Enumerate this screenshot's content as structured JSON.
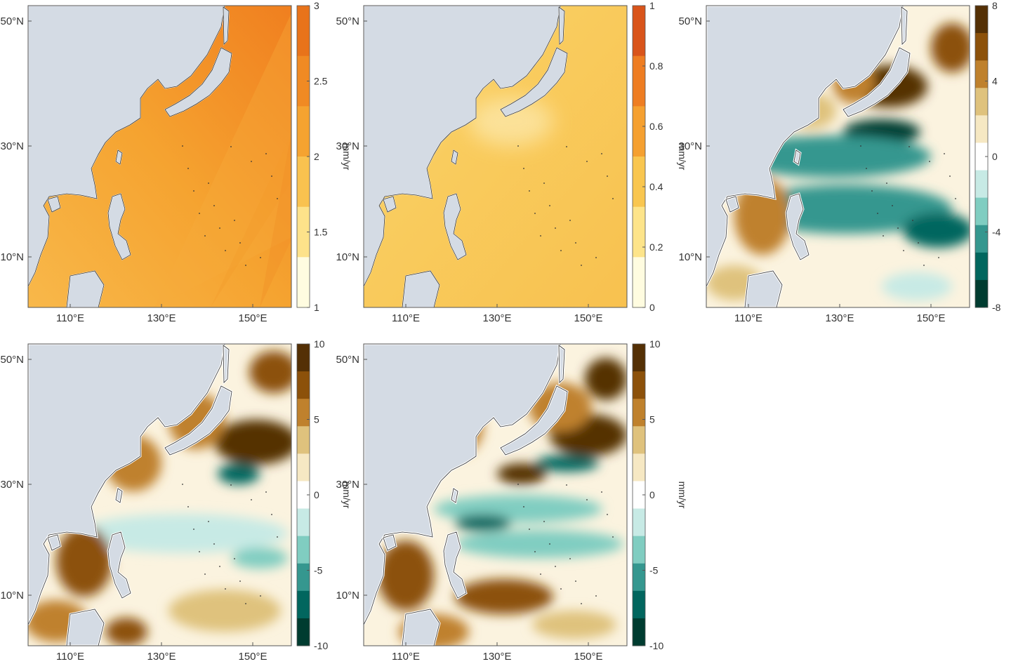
{
  "map_axes": {
    "lon_ticks": [
      "110°E",
      "130°E",
      "150°E"
    ],
    "lat_ticks": [
      "50°N",
      "30°N",
      "10°N"
    ]
  },
  "panels": [
    {
      "id": "a",
      "colorbar": {
        "label": "mm/yr",
        "ticks": [
          "3",
          "2.5",
          "2",
          "1.5",
          "1"
        ],
        "colors": [
          "#e8731a",
          "#f08a23",
          "#f5a330",
          "#f9c24f",
          "#fde28a",
          "#fffce0"
        ]
      },
      "field_colors": {
        "land_fill": "#d4dbe4",
        "ocean_low": "#f8b84a",
        "ocean_high": "#f28a22"
      }
    },
    {
      "id": "b",
      "colorbar": {
        "label": "mm/yr",
        "ticks": [
          "1",
          "0.8",
          "0.6",
          "0.4",
          "0.2",
          "0"
        ],
        "colors": [
          "#d9541a",
          "#ee7d22",
          "#f5a030",
          "#f9c64f",
          "#fde48a",
          "#fffce0"
        ]
      },
      "field_colors": {
        "land_fill": "#d4dbe4",
        "ocean_low": "#fde08a",
        "ocean_high": "#f8c855"
      }
    },
    {
      "id": "c",
      "colorbar": {
        "label": "mm/yr",
        "ticks": [
          "8",
          "4",
          "0",
          "-4",
          "-8"
        ],
        "colors": [
          "#543005",
          "#8c510a",
          "#bf812d",
          "#dfc27d",
          "#f6e8c3",
          "#ffffff",
          "#c7eae5",
          "#80cdc1",
          "#35978f",
          "#01665e",
          "#003c30"
        ]
      },
      "field_colors": {
        "land_fill": "#d4dbe4"
      }
    },
    {
      "id": "d",
      "colorbar": {
        "label": "mm/yr",
        "ticks": [
          "10",
          "5",
          "0",
          "-5",
          "-10"
        ],
        "colors": [
          "#543005",
          "#8c510a",
          "#bf812d",
          "#dfc27d",
          "#f6e8c3",
          "#ffffff",
          "#c7eae5",
          "#80cdc1",
          "#35978f",
          "#01665e",
          "#003c30"
        ]
      },
      "field_colors": {
        "land_fill": "#d4dbe4"
      }
    },
    {
      "id": "e",
      "colorbar": {
        "label": "mm/yr",
        "ticks": [
          "10",
          "5",
          "0",
          "-5",
          "-10"
        ],
        "colors": [
          "#543005",
          "#8c510a",
          "#bf812d",
          "#dfc27d",
          "#f6e8c3",
          "#ffffff",
          "#c7eae5",
          "#80cdc1",
          "#35978f",
          "#01665e",
          "#003c30"
        ]
      },
      "field_colors": {
        "land_fill": "#d4dbe4"
      }
    }
  ]
}
